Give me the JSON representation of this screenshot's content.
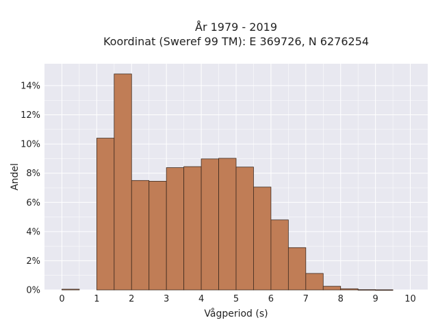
{
  "chart_data": {
    "type": "bar",
    "title_line1": "År 1979 - 2019",
    "title_line2": "Koordinat (Sweref 99 TM): E 369726, N 6276254",
    "xlabel": "Vågperiod (s)",
    "ylabel": "Andel",
    "xlim": [
      -0.5,
      10.5
    ],
    "ylim": [
      0,
      0.155
    ],
    "x_ticks": [
      0,
      1,
      2,
      3,
      4,
      5,
      6,
      7,
      8,
      9,
      10
    ],
    "x_tick_labels": [
      "0",
      "1",
      "2",
      "3",
      "4",
      "5",
      "6",
      "7",
      "8",
      "9",
      "10"
    ],
    "y_ticks": [
      0,
      0.02,
      0.04,
      0.06,
      0.08,
      0.1,
      0.12,
      0.14
    ],
    "y_tick_labels": [
      "0%",
      "2%",
      "4%",
      "6%",
      "8%",
      "10%",
      "12%",
      "14%"
    ],
    "bin_width": 0.5,
    "bin_starts": [
      0,
      0.5,
      1,
      1.5,
      2,
      2.5,
      3,
      3.5,
      4,
      4.5,
      5,
      5.5,
      6,
      6.5,
      7,
      7.5,
      8,
      8.5,
      9
    ],
    "values": [
      0.0005,
      0,
      0.104,
      0.148,
      0.075,
      0.0745,
      0.0838,
      0.0845,
      0.0898,
      0.0902,
      0.0842,
      0.0705,
      0.048,
      0.029,
      0.0113,
      0.0025,
      0.0008,
      0.0002,
      0.0001
    ],
    "grid": true,
    "colors": {
      "bar": "#c07d56",
      "bar_edge": "#3d2a1f",
      "plot_bg": "#e8e8f0",
      "grid": "#ffffff"
    }
  }
}
